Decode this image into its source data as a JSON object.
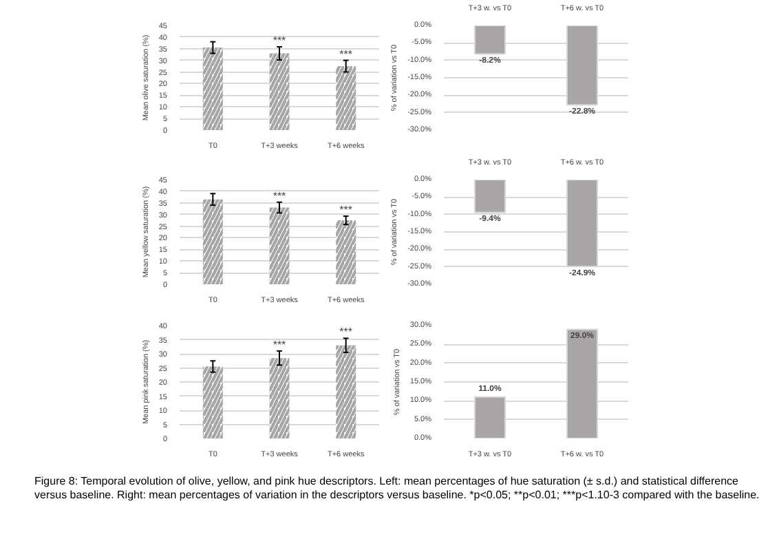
{
  "chart_data": [
    {
      "type": "bar",
      "ylabel": "Mean olive saturation (%)",
      "categories": [
        "T0",
        "T+3 weeks",
        "T+6 weeks"
      ],
      "values": [
        35.5,
        33,
        27.5
      ],
      "errors": [
        2.5,
        2.8,
        2.5
      ],
      "color": "#a6a6a6",
      "ylim": [
        0,
        45
      ],
      "yticks": [
        0,
        5,
        10,
        15,
        20,
        25,
        30,
        35,
        40,
        45
      ],
      "grid": "y",
      "annotations": [
        {
          "text": "***",
          "x": "T+3 weeks",
          "y": 35.8
        },
        {
          "text": "***",
          "x": "T+6 weeks",
          "y": 30
        }
      ]
    },
    {
      "type": "bar",
      "ylabel": "% of variation vs T0",
      "categories": [
        "T+3 w. vs T0",
        "T+6 w. vs T0"
      ],
      "values": [
        -8.2,
        -22.8
      ],
      "value_labels": [
        "-8.2%",
        "-22.8%"
      ],
      "color": "#aba6a6",
      "ylim": [
        -30,
        0
      ],
      "yticks": [
        {
          "value": 0,
          "label": "0.0%"
        },
        {
          "value": -5,
          "label": "-5.0%"
        },
        {
          "value": -10,
          "label": "-10.0%"
        },
        {
          "value": -15,
          "label": "-15.0%"
        },
        {
          "value": -20,
          "label": "-20.0%"
        },
        {
          "value": -25,
          "label": "-25.0%"
        },
        {
          "value": -30,
          "label": "-30.0%"
        }
      ],
      "grid": "y"
    },
    {
      "type": "bar",
      "ylabel": "Mean yellow saturation (%)",
      "categories": [
        "T0",
        "T+3 weeks",
        "T+6 weeks"
      ],
      "values": [
        36.5,
        33,
        27.5
      ],
      "errors": [
        2.5,
        2.3,
        1.8
      ],
      "color": "#a6a6a6",
      "ylim": [
        0,
        45
      ],
      "yticks": [
        0,
        5,
        10,
        15,
        20,
        25,
        30,
        35,
        40,
        45
      ],
      "grid": "y",
      "annotations": [
        {
          "text": "***",
          "x": "T+3 weeks",
          "y": 35.3
        },
        {
          "text": "***",
          "x": "T+6 weeks",
          "y": 29.3
        }
      ]
    },
    {
      "type": "bar",
      "ylabel": "% of variation vs T0",
      "categories": [
        "T+3 w. vs T0",
        "T+6 w. vs T0"
      ],
      "values": [
        -9.4,
        -24.9
      ],
      "value_labels": [
        "-9.4%",
        "-24.9%"
      ],
      "color": "#aba6a6",
      "ylim": [
        -30,
        0
      ],
      "yticks": [
        {
          "value": 0,
          "label": "0.0%"
        },
        {
          "value": -5,
          "label": "-5.0%"
        },
        {
          "value": -10,
          "label": "-10.0%"
        },
        {
          "value": -15,
          "label": "-15.0%"
        },
        {
          "value": -20,
          "label": "-20.0%"
        },
        {
          "value": -25,
          "label": "-25.0%"
        },
        {
          "value": -30,
          "label": "-30.0%"
        }
      ],
      "grid": "y"
    },
    {
      "type": "bar",
      "ylabel": "Mean pink saturation (%)",
      "categories": [
        "T0",
        "T+3 weeks",
        "T+6 weeks"
      ],
      "values": [
        25.5,
        28.5,
        33
      ],
      "errors": [
        2,
        2.5,
        2.5
      ],
      "color": "#a6a6a6",
      "ylim": [
        0,
        40
      ],
      "yticks": [
        0,
        5,
        10,
        15,
        20,
        25,
        30,
        35,
        40
      ],
      "grid": "y",
      "annotations": [
        {
          "text": "***",
          "x": "T+3 weeks",
          "y": 31
        },
        {
          "text": "***",
          "x": "T+6 weeks",
          "y": 35.5
        }
      ]
    },
    {
      "type": "bar",
      "ylabel": "% of variation vs T0",
      "categories": [
        "T+3 w. vs T0",
        "T+6 w. vs T0"
      ],
      "values": [
        11.0,
        29.0
      ],
      "value_labels": [
        "11.0%",
        "29.0%"
      ],
      "color": "#aba6a6",
      "ylim": [
        0,
        30
      ],
      "yticks": [
        {
          "value": 0,
          "label": "0.0%"
        },
        {
          "value": 5,
          "label": "5.0%"
        },
        {
          "value": 10,
          "label": "10.0%"
        },
        {
          "value": 15,
          "label": "15.0%"
        },
        {
          "value": 20,
          "label": "20.0%"
        },
        {
          "value": 25,
          "label": "25.0%"
        },
        {
          "value": 30,
          "label": "30.0%"
        }
      ],
      "grid": "y",
      "annotations": [
        "Figure 8: Temporal evolution of olive, yellow, and pink hue descriptors. Left: mean percentages of hue saturation (± s.d.) and statistical difference versus baseline. Right: mean percentages of variation in the descriptors versus baseline. *p<0.05; **p<0.01; ***p<1.10-3 compared with the baseline."
      ]
    }
  ]
}
